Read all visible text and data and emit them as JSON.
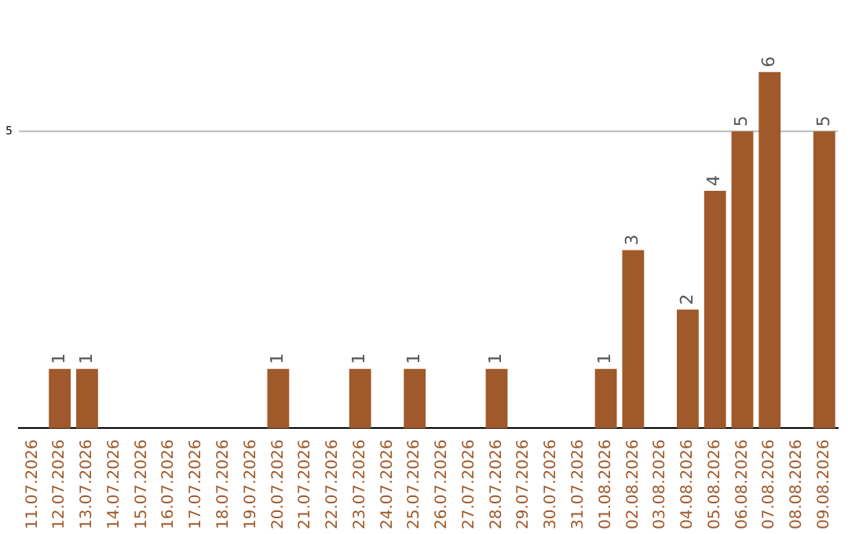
{
  "chart_data": {
    "type": "bar",
    "categories": [
      "11.07.2026",
      "12.07.2026",
      "13.07.2026",
      "14.07.2026",
      "15.07.2026",
      "16.07.2026",
      "17.07.2026",
      "18.07.2026",
      "19.07.2026",
      "20.07.2026",
      "21.07.2026",
      "22.07.2026",
      "23.07.2026",
      "24.07.2026",
      "25.07.2026",
      "26.07.2026",
      "27.07.2026",
      "28.07.2026",
      "29.07.2026",
      "30.07.2026",
      "31.07.2026",
      "01.08.2026",
      "02.08.2026",
      "03.08.2026",
      "04.08.2026",
      "05.08.2026",
      "06.08.2026",
      "07.08.2026",
      "08.08.2026",
      "09.08.2026"
    ],
    "values": [
      0,
      1,
      1,
      0,
      0,
      0,
      0,
      0,
      0,
      1,
      0,
      0,
      1,
      0,
      1,
      0,
      0,
      1,
      0,
      0,
      0,
      1,
      3,
      0,
      2,
      4,
      5,
      6,
      0,
      5
    ],
    "value_labels": [
      null,
      "1",
      "1",
      null,
      null,
      null,
      null,
      null,
      null,
      "1",
      null,
      null,
      "1",
      null,
      "1",
      null,
      null,
      "1",
      null,
      null,
      null,
      "1",
      "3",
      null,
      "2",
      "4",
      "5",
      "6",
      null,
      "5"
    ],
    "color": "#a0592a",
    "ref_lines": [
      {
        "axis": "y",
        "value": 5,
        "label": "5",
        "color": "#bbbbbb"
      }
    ],
    "legend": false
  }
}
